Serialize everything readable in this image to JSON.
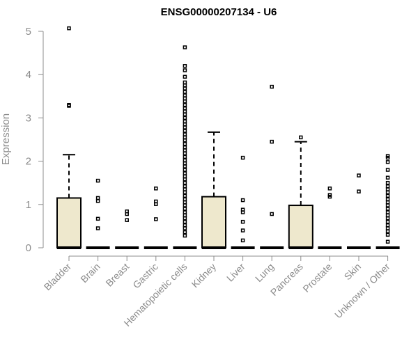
{
  "chart_data": {
    "type": "boxplot",
    "title": "ENSG00000207134 - U6",
    "ylabel": "Expression",
    "xlabel": "",
    "ylim": [
      0,
      5
    ],
    "yticks": [
      0,
      1,
      2,
      3,
      4,
      5
    ],
    "grid": false,
    "colors": {
      "box_fill": "#eee8cd",
      "box_stroke": "#000000",
      "axis": "#8c8c8c"
    },
    "categories": [
      "Bladder",
      "Brain",
      "Breast",
      "Gastric",
      "Hematopoietic cells",
      "Kidney",
      "Liver",
      "Lung",
      "Pancreas",
      "Prostate",
      "Skin",
      "Unknown / Other"
    ],
    "boxes": [
      {
        "category": "Bladder",
        "q1": 0,
        "median": 0,
        "q3": 1.15,
        "whisker_low": 0,
        "whisker_high": 2.15,
        "outliers": [
          3.28,
          3.3,
          5.07
        ]
      },
      {
        "category": "Brain",
        "q1": 0,
        "median": 0,
        "q3": 0,
        "whisker_low": 0,
        "whisker_high": 0,
        "outliers": [
          0.45,
          0.67,
          1.08,
          1.15,
          1.55
        ]
      },
      {
        "category": "Breast",
        "q1": 0,
        "median": 0,
        "q3": 0,
        "whisker_low": 0,
        "whisker_high": 0,
        "outliers": [
          0.64,
          0.78,
          0.84
        ]
      },
      {
        "category": "Gastric",
        "q1": 0,
        "median": 0,
        "q3": 0,
        "whisker_low": 0,
        "whisker_high": 0,
        "outliers": [
          0.66,
          1.01,
          1.07,
          1.37
        ]
      },
      {
        "category": "Hematopoietic cells",
        "q1": 0,
        "median": 0,
        "q3": 0,
        "whisker_low": 0,
        "whisker_high": 0,
        "outliers": [
          0.28,
          0.36,
          0.45,
          0.52,
          0.6,
          0.68,
          0.75,
          0.82,
          0.9,
          0.98,
          1.05,
          1.12,
          1.2,
          1.28,
          1.35,
          1.42,
          1.5,
          1.58,
          1.65,
          1.72,
          1.8,
          1.88,
          1.95,
          2.02,
          2.1,
          2.18,
          2.25,
          2.32,
          2.4,
          2.48,
          2.55,
          2.62,
          2.7,
          2.78,
          2.85,
          2.92,
          3.0,
          3.08,
          3.15,
          3.22,
          3.3,
          3.38,
          3.45,
          3.52,
          3.6,
          3.68,
          3.75,
          3.82,
          3.95,
          4.1,
          4.2,
          4.63
        ]
      },
      {
        "category": "Kidney",
        "q1": 0,
        "median": 0,
        "q3": 1.18,
        "whisker_low": 0,
        "whisker_high": 2.67,
        "outliers": []
      },
      {
        "category": "Liver",
        "q1": 0,
        "median": 0,
        "q3": 0,
        "whisker_low": 0,
        "whisker_high": 0,
        "outliers": [
          0.17,
          0.4,
          0.6,
          0.82,
          0.88,
          1.1,
          2.08
        ]
      },
      {
        "category": "Lung",
        "q1": 0,
        "median": 0,
        "q3": 0,
        "whisker_low": 0,
        "whisker_high": 0,
        "outliers": [
          0.78,
          2.45,
          3.72
        ]
      },
      {
        "category": "Pancreas",
        "q1": 0,
        "median": 0,
        "q3": 0.98,
        "whisker_low": 0,
        "whisker_high": 2.45,
        "outliers": [
          2.55
        ]
      },
      {
        "category": "Prostate",
        "q1": 0,
        "median": 0,
        "q3": 0,
        "whisker_low": 0,
        "whisker_high": 0,
        "outliers": [
          1.18,
          1.22,
          1.37
        ]
      },
      {
        "category": "Skin",
        "q1": 0,
        "median": 0,
        "q3": 0,
        "whisker_low": 0,
        "whisker_high": 0,
        "outliers": [
          1.3,
          1.67
        ]
      },
      {
        "category": "Unknown / Other",
        "q1": 0,
        "median": 0,
        "q3": 0,
        "whisker_low": 0,
        "whisker_high": 0,
        "outliers": [
          0.14,
          0.3,
          0.38,
          0.45,
          0.52,
          0.6,
          0.68,
          0.75,
          0.82,
          0.9,
          0.98,
          1.05,
          1.12,
          1.2,
          1.28,
          1.35,
          1.42,
          1.5,
          1.62,
          1.8,
          1.98,
          2.08,
          2.12
        ]
      }
    ]
  }
}
